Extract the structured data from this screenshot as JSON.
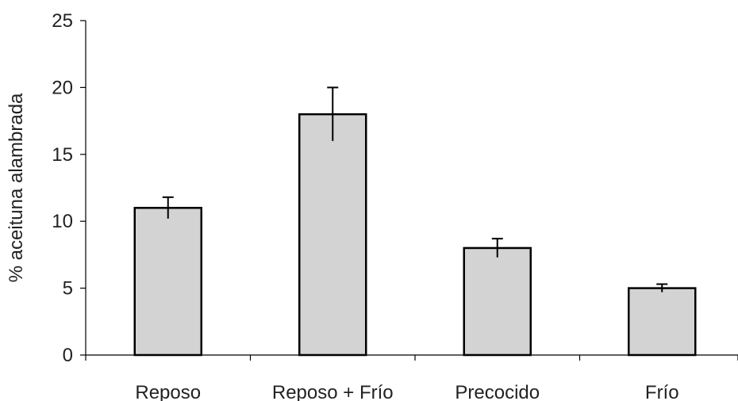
{
  "chart_data": {
    "type": "bar",
    "ylabel": "% aceituna alambrada",
    "xlabel": "",
    "ylim": [
      0,
      25
    ],
    "yticks": [
      0,
      5,
      10,
      15,
      20,
      25
    ],
    "categories": [
      "Reposo",
      "Reposo + Frío",
      "Precocido",
      "Frío"
    ],
    "values": [
      11,
      18,
      8,
      5
    ],
    "error_upper": [
      0.8,
      2.0,
      0.7,
      0.3
    ],
    "error_lower": [
      0.8,
      2.0,
      0.7,
      0.3
    ],
    "bar_color": "#d3d3d3",
    "grid": false,
    "legend": "none"
  }
}
